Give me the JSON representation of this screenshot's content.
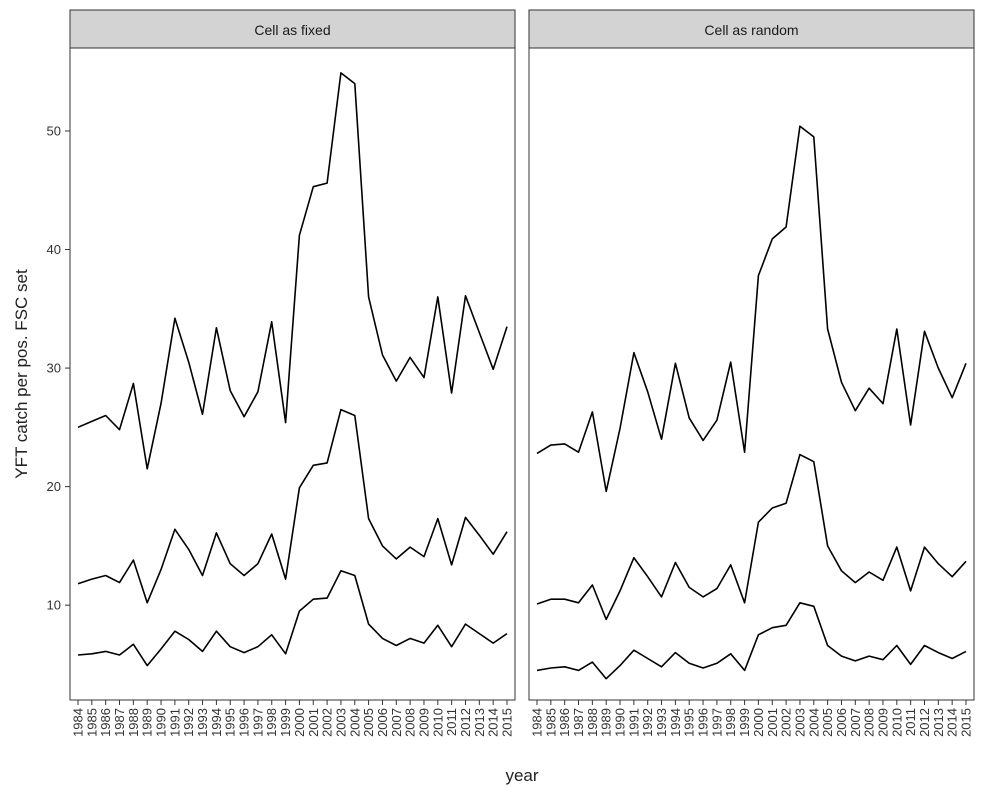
{
  "chart_data": {
    "type": "line",
    "xlabel": "year",
    "ylabel": "YFT catch per pos. FSC set",
    "ylim": [
      2,
      57
    ],
    "yticks": [
      10,
      20,
      30,
      40,
      50
    ],
    "x": [
      "1984",
      "1985",
      "1986",
      "1987",
      "1988",
      "1989",
      "1990",
      "1991",
      "1992",
      "1993",
      "1994",
      "1995",
      "1996",
      "1997",
      "1998",
      "1999",
      "2000",
      "2001",
      "2002",
      "2003",
      "2004",
      "2005",
      "2006",
      "2007",
      "2008",
      "2009",
      "2010",
      "2011",
      "2012",
      "2013",
      "2014",
      "2015"
    ],
    "grid": false,
    "legend": "none",
    "line_color": "#000000",
    "panels": [
      {
        "title": "Cell as fixed",
        "series": [
          {
            "values": [
              25.0,
              25.5,
              26.0,
              24.8,
              28.7,
              21.5,
              27.0,
              34.2,
              30.5,
              26.1,
              33.4,
              28.1,
              25.9,
              28.0,
              33.9,
              25.4,
              41.2,
              45.3,
              45.6,
              54.9,
              54.0,
              36.0,
              31.1,
              28.9,
              30.9,
              29.2,
              36.0,
              27.9,
              36.1,
              33.0,
              29.9,
              33.5
            ]
          },
          {
            "values": [
              11.8,
              12.2,
              12.5,
              11.9,
              13.8,
              10.2,
              13.0,
              16.4,
              14.7,
              12.5,
              16.1,
              13.5,
              12.5,
              13.5,
              16.0,
              12.2,
              19.9,
              21.8,
              22.0,
              26.5,
              26.0,
              17.3,
              15.0,
              13.9,
              14.9,
              14.1,
              17.3,
              13.4,
              17.4,
              15.9,
              14.3,
              16.2
            ]
          },
          {
            "values": [
              5.8,
              5.9,
              6.1,
              5.8,
              6.7,
              4.9,
              6.3,
              7.8,
              7.1,
              6.1,
              7.8,
              6.5,
              6.0,
              6.5,
              7.5,
              5.9,
              9.5,
              10.5,
              10.6,
              12.9,
              12.5,
              8.4,
              7.2,
              6.6,
              7.2,
              6.8,
              8.3,
              6.5,
              8.4,
              7.6,
              6.8,
              7.6
            ]
          }
        ]
      },
      {
        "title": "Cell as random",
        "series": [
          {
            "values": [
              22.8,
              23.5,
              23.6,
              22.9,
              26.3,
              19.6,
              24.9,
              31.3,
              28.0,
              24.0,
              30.4,
              25.8,
              23.9,
              25.6,
              30.5,
              22.9,
              37.8,
              40.9,
              41.9,
              50.4,
              49.5,
              33.3,
              28.8,
              26.4,
              28.3,
              27.0,
              33.3,
              25.2,
              33.1,
              30.0,
              27.5,
              30.4
            ]
          },
          {
            "values": [
              10.1,
              10.5,
              10.5,
              10.2,
              11.7,
              8.8,
              11.2,
              14.0,
              12.4,
              10.7,
              13.6,
              11.5,
              10.7,
              11.4,
              13.4,
              10.2,
              17.0,
              18.2,
              18.6,
              22.7,
              22.1,
              15.0,
              12.9,
              11.9,
              12.8,
              12.1,
              14.9,
              11.2,
              14.9,
              13.5,
              12.4,
              13.7
            ]
          },
          {
            "values": [
              4.5,
              4.7,
              4.8,
              4.5,
              5.2,
              3.8,
              4.9,
              6.2,
              5.5,
              4.8,
              6.0,
              5.1,
              4.7,
              5.1,
              5.9,
              4.5,
              7.5,
              8.1,
              8.3,
              10.2,
              9.9,
              6.6,
              5.7,
              5.3,
              5.7,
              5.4,
              6.6,
              5.0,
              6.6,
              6.0,
              5.5,
              6.1
            ]
          }
        ]
      }
    ]
  }
}
